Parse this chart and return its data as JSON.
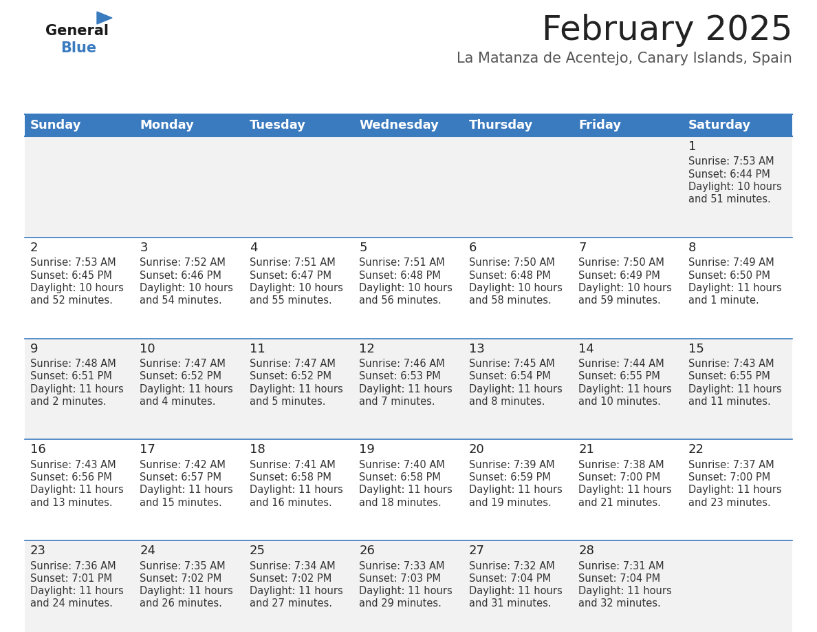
{
  "title": "February 2025",
  "subtitle": "La Matanza de Acentejo, Canary Islands, Spain",
  "header_color": "#3a7abf",
  "header_text_color": "#ffffff",
  "cell_bg_even": "#f2f2f2",
  "cell_bg_odd": "#ffffff",
  "border_color": "#3a7abf",
  "text_color": "#333333",
  "day_names": [
    "Sunday",
    "Monday",
    "Tuesday",
    "Wednesday",
    "Thursday",
    "Friday",
    "Saturday"
  ],
  "days": [
    {
      "day": 1,
      "col": 6,
      "row": 0,
      "sunrise": "7:53 AM",
      "sunset": "6:44 PM",
      "daylight": "10 hours and 51 minutes."
    },
    {
      "day": 2,
      "col": 0,
      "row": 1,
      "sunrise": "7:53 AM",
      "sunset": "6:45 PM",
      "daylight": "10 hours and 52 minutes."
    },
    {
      "day": 3,
      "col": 1,
      "row": 1,
      "sunrise": "7:52 AM",
      "sunset": "6:46 PM",
      "daylight": "10 hours and 54 minutes."
    },
    {
      "day": 4,
      "col": 2,
      "row": 1,
      "sunrise": "7:51 AM",
      "sunset": "6:47 PM",
      "daylight": "10 hours and 55 minutes."
    },
    {
      "day": 5,
      "col": 3,
      "row": 1,
      "sunrise": "7:51 AM",
      "sunset": "6:48 PM",
      "daylight": "10 hours and 56 minutes."
    },
    {
      "day": 6,
      "col": 4,
      "row": 1,
      "sunrise": "7:50 AM",
      "sunset": "6:48 PM",
      "daylight": "10 hours and 58 minutes."
    },
    {
      "day": 7,
      "col": 5,
      "row": 1,
      "sunrise": "7:50 AM",
      "sunset": "6:49 PM",
      "daylight": "10 hours and 59 minutes."
    },
    {
      "day": 8,
      "col": 6,
      "row": 1,
      "sunrise": "7:49 AM",
      "sunset": "6:50 PM",
      "daylight": "11 hours and 1 minute."
    },
    {
      "day": 9,
      "col": 0,
      "row": 2,
      "sunrise": "7:48 AM",
      "sunset": "6:51 PM",
      "daylight": "11 hours and 2 minutes."
    },
    {
      "day": 10,
      "col": 1,
      "row": 2,
      "sunrise": "7:47 AM",
      "sunset": "6:52 PM",
      "daylight": "11 hours and 4 minutes."
    },
    {
      "day": 11,
      "col": 2,
      "row": 2,
      "sunrise": "7:47 AM",
      "sunset": "6:52 PM",
      "daylight": "11 hours and 5 minutes."
    },
    {
      "day": 12,
      "col": 3,
      "row": 2,
      "sunrise": "7:46 AM",
      "sunset": "6:53 PM",
      "daylight": "11 hours and 7 minutes."
    },
    {
      "day": 13,
      "col": 4,
      "row": 2,
      "sunrise": "7:45 AM",
      "sunset": "6:54 PM",
      "daylight": "11 hours and 8 minutes."
    },
    {
      "day": 14,
      "col": 5,
      "row": 2,
      "sunrise": "7:44 AM",
      "sunset": "6:55 PM",
      "daylight": "11 hours and 10 minutes."
    },
    {
      "day": 15,
      "col": 6,
      "row": 2,
      "sunrise": "7:43 AM",
      "sunset": "6:55 PM",
      "daylight": "11 hours and 11 minutes."
    },
    {
      "day": 16,
      "col": 0,
      "row": 3,
      "sunrise": "7:43 AM",
      "sunset": "6:56 PM",
      "daylight": "11 hours and 13 minutes."
    },
    {
      "day": 17,
      "col": 1,
      "row": 3,
      "sunrise": "7:42 AM",
      "sunset": "6:57 PM",
      "daylight": "11 hours and 15 minutes."
    },
    {
      "day": 18,
      "col": 2,
      "row": 3,
      "sunrise": "7:41 AM",
      "sunset": "6:58 PM",
      "daylight": "11 hours and 16 minutes."
    },
    {
      "day": 19,
      "col": 3,
      "row": 3,
      "sunrise": "7:40 AM",
      "sunset": "6:58 PM",
      "daylight": "11 hours and 18 minutes."
    },
    {
      "day": 20,
      "col": 4,
      "row": 3,
      "sunrise": "7:39 AM",
      "sunset": "6:59 PM",
      "daylight": "11 hours and 19 minutes."
    },
    {
      "day": 21,
      "col": 5,
      "row": 3,
      "sunrise": "7:38 AM",
      "sunset": "7:00 PM",
      "daylight": "11 hours and 21 minutes."
    },
    {
      "day": 22,
      "col": 6,
      "row": 3,
      "sunrise": "7:37 AM",
      "sunset": "7:00 PM",
      "daylight": "11 hours and 23 minutes."
    },
    {
      "day": 23,
      "col": 0,
      "row": 4,
      "sunrise": "7:36 AM",
      "sunset": "7:01 PM",
      "daylight": "11 hours and 24 minutes."
    },
    {
      "day": 24,
      "col": 1,
      "row": 4,
      "sunrise": "7:35 AM",
      "sunset": "7:02 PM",
      "daylight": "11 hours and 26 minutes."
    },
    {
      "day": 25,
      "col": 2,
      "row": 4,
      "sunrise": "7:34 AM",
      "sunset": "7:02 PM",
      "daylight": "11 hours and 27 minutes."
    },
    {
      "day": 26,
      "col": 3,
      "row": 4,
      "sunrise": "7:33 AM",
      "sunset": "7:03 PM",
      "daylight": "11 hours and 29 minutes."
    },
    {
      "day": 27,
      "col": 4,
      "row": 4,
      "sunrise": "7:32 AM",
      "sunset": "7:04 PM",
      "daylight": "11 hours and 31 minutes."
    },
    {
      "day": 28,
      "col": 5,
      "row": 4,
      "sunrise": "7:31 AM",
      "sunset": "7:04 PM",
      "daylight": "11 hours and 32 minutes."
    }
  ],
  "num_rows": 5,
  "num_cols": 7,
  "logo_general_color": "#1a1a1a",
  "logo_blue_color": "#3a7abf",
  "title_fontsize": 36,
  "subtitle_fontsize": 15,
  "header_fontsize": 13,
  "day_num_fontsize": 13,
  "cell_text_fontsize": 10.5
}
